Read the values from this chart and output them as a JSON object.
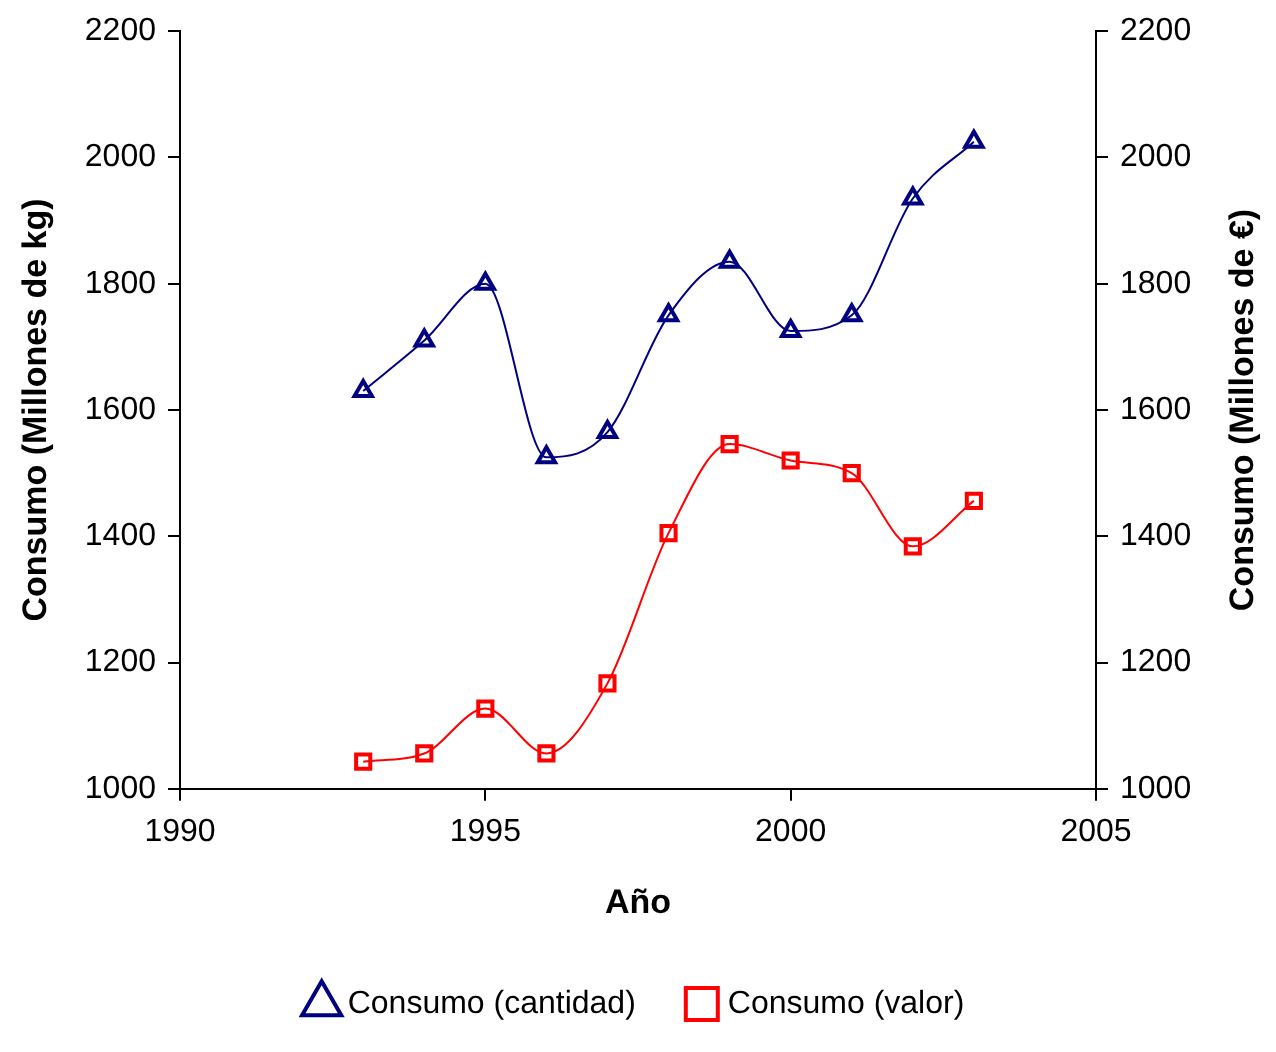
{
  "chart_data": {
    "type": "line",
    "xlabel": "Año",
    "ylabel": "Consumo (Millones de kg)",
    "y2label": "Consumo (Millones de €)",
    "x": [
      1993,
      1994,
      1995,
      1996,
      1997,
      1998,
      1999,
      2000,
      2001,
      2002,
      2003
    ],
    "xlim": [
      1990,
      2005
    ],
    "xticks": [
      1990,
      1995,
      2000,
      2005
    ],
    "ylim": [
      1000,
      2200
    ],
    "yticks": [
      1000,
      1200,
      1400,
      1600,
      1800,
      2000,
      2200
    ],
    "y2lim": [
      1000,
      2200
    ],
    "y2ticks": [
      1000,
      1200,
      1400,
      1600,
      1800,
      2000,
      2200
    ],
    "grid": false,
    "legend": "bottom",
    "line_style": "solid",
    "series": [
      {
        "name": "Consumo (cantidad)",
        "color": "#000080",
        "marker": "triangle",
        "values": [
          1630,
          1710,
          1800,
          1525,
          1565,
          1750,
          1835,
          1725,
          1750,
          1935,
          2025
        ]
      },
      {
        "name": "Consumo (valor)",
        "color": "#ff0000",
        "marker": "square",
        "axis": "y2",
        "values": [
          1043,
          1056,
          1127,
          1056,
          1167,
          1405,
          1546,
          1520,
          1500,
          1384,
          1456
        ]
      }
    ]
  }
}
